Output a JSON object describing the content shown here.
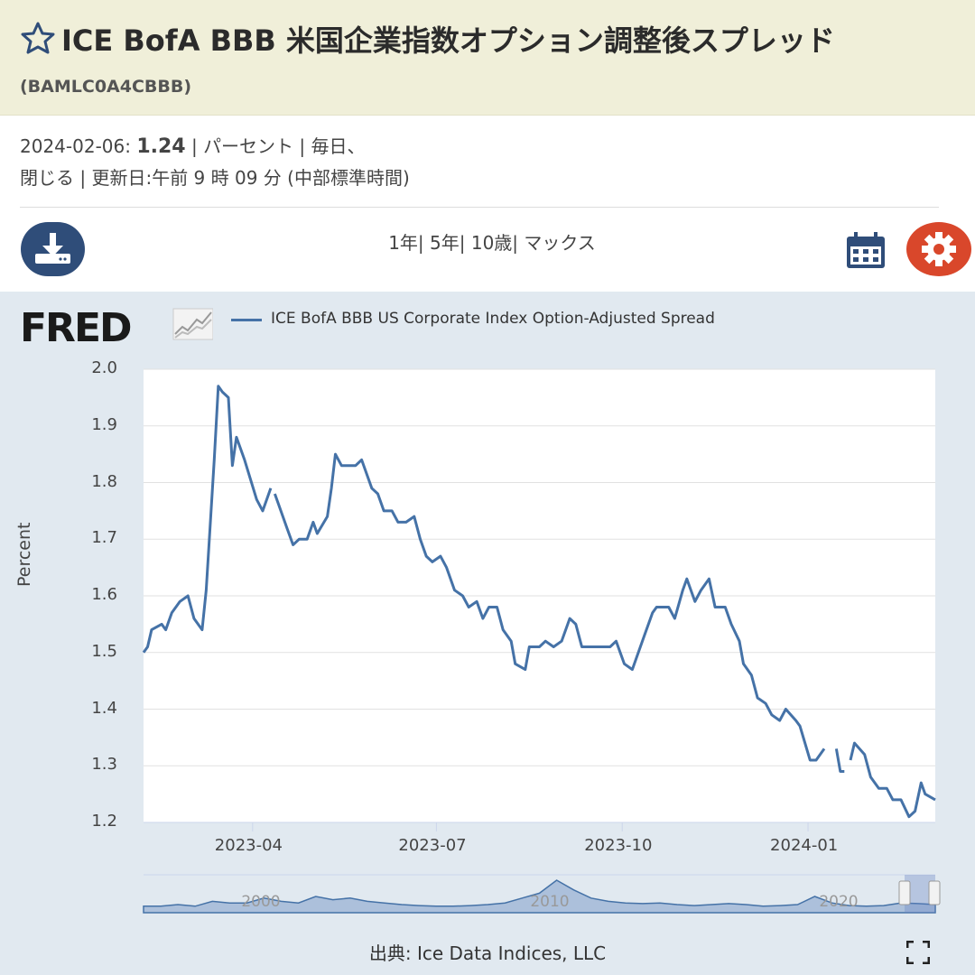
{
  "header": {
    "title": "ICE BofA BBB 米国企業指数オプション調整後スプレッド",
    "series_id": "(BAMLC0A4CBBB)"
  },
  "meta": {
    "date": "2024-02-06:",
    "value": "1.24",
    "line1_rest": " | パーセント | 毎日、",
    "line2": "閉じる | 更新日:午前 9 時 09 分 (中部標準時間)"
  },
  "ranges": [
    "1年|",
    " 5年|",
    " 10歳|",
    " マックス"
  ],
  "icons": {
    "download": "download-icon",
    "calendar": "calendar-icon",
    "settings": "gear-icon",
    "favorite": "star-icon",
    "fullscreen": "fullscreen-icon"
  },
  "colors": {
    "header_bg": "#f0efd9",
    "line": "#4572a7",
    "settings": "#d9472b",
    "download": "#2f4d79"
  },
  "chart_data": {
    "type": "line",
    "logo": "FRED",
    "legend": "ICE BofA BBB US Corporate Index Option-Adjusted Spread",
    "ylabel": "Percent",
    "xlabel": "",
    "ylim": [
      1.2,
      2.0
    ],
    "yticks": [
      "2.0",
      "1.9",
      "1.8",
      "1.7",
      "1.6",
      "1.5",
      "1.4",
      "1.3",
      "1.2"
    ],
    "xticks": [
      "2023-04",
      "2023-07",
      "2023-10",
      "2024-01"
    ],
    "navigator_labels": [
      "2000",
      "2010",
      "2020"
    ],
    "grid": true,
    "series": [
      {
        "name": "ICE BofA BBB US Corporate Index Option-Adjusted Spread",
        "points": [
          [
            "2023-02-06",
            1.5
          ],
          [
            "2023-02-08",
            1.51
          ],
          [
            "2023-02-10",
            1.54
          ],
          [
            "2023-02-15",
            1.55
          ],
          [
            "2023-02-17",
            1.54
          ],
          [
            "2023-02-20",
            1.57
          ],
          [
            "2023-02-24",
            1.59
          ],
          [
            "2023-02-28",
            1.6
          ],
          [
            "2023-03-03",
            1.56
          ],
          [
            "2023-03-07",
            1.54
          ],
          [
            "2023-03-09",
            1.61
          ],
          [
            "2023-03-13",
            1.84
          ],
          [
            "2023-03-15",
            1.97
          ],
          [
            "2023-03-17",
            1.96
          ],
          [
            "2023-03-20",
            1.95
          ],
          [
            "2023-03-22",
            1.83
          ],
          [
            "2023-03-24",
            1.88
          ],
          [
            "2023-03-28",
            1.84
          ],
          [
            "2023-04-03",
            1.77
          ],
          [
            "2023-04-06",
            1.75
          ],
          [
            "2023-04-10",
            1.79
          ],
          null,
          [
            "2023-04-12",
            1.78
          ],
          [
            "2023-04-14",
            1.76
          ],
          [
            "2023-04-18",
            1.72
          ],
          [
            "2023-04-21",
            1.69
          ],
          [
            "2023-04-24",
            1.7
          ],
          [
            "2023-04-28",
            1.7
          ],
          [
            "2023-05-01",
            1.73
          ],
          [
            "2023-05-03",
            1.71
          ],
          [
            "2023-05-08",
            1.74
          ],
          [
            "2023-05-10",
            1.79
          ],
          [
            "2023-05-12",
            1.85
          ],
          [
            "2023-05-15",
            1.83
          ],
          [
            "2023-05-22",
            1.83
          ],
          [
            "2023-05-25",
            1.84
          ],
          [
            "2023-05-30",
            1.79
          ],
          [
            "2023-06-02",
            1.78
          ],
          [
            "2023-06-05",
            1.75
          ],
          [
            "2023-06-09",
            1.75
          ],
          [
            "2023-06-12",
            1.73
          ],
          [
            "2023-06-16",
            1.73
          ],
          [
            "2023-06-20",
            1.74
          ],
          [
            "2023-06-23",
            1.7
          ],
          [
            "2023-06-26",
            1.67
          ],
          [
            "2023-06-29",
            1.66
          ],
          [
            "2023-07-03",
            1.67
          ],
          [
            "2023-07-06",
            1.65
          ],
          [
            "2023-07-10",
            1.61
          ],
          [
            "2023-07-14",
            1.6
          ],
          [
            "2023-07-17",
            1.58
          ],
          [
            "2023-07-21",
            1.59
          ],
          [
            "2023-07-24",
            1.56
          ],
          [
            "2023-07-27",
            1.58
          ],
          [
            "2023-07-31",
            1.58
          ],
          [
            "2023-08-03",
            1.54
          ],
          [
            "2023-08-07",
            1.52
          ],
          [
            "2023-08-09",
            1.48
          ],
          [
            "2023-08-14",
            1.47
          ],
          [
            "2023-08-16",
            1.51
          ],
          [
            "2023-08-21",
            1.51
          ],
          [
            "2023-08-24",
            1.52
          ],
          [
            "2023-08-28",
            1.51
          ],
          [
            "2023-09-01",
            1.52
          ],
          [
            "2023-09-05",
            1.56
          ],
          [
            "2023-09-08",
            1.55
          ],
          [
            "2023-09-11",
            1.51
          ],
          [
            "2023-09-20",
            1.51
          ],
          [
            "2023-09-25",
            1.51
          ],
          [
            "2023-09-28",
            1.52
          ],
          [
            "2023-10-02",
            1.48
          ],
          [
            "2023-10-06",
            1.47
          ],
          [
            "2023-10-09",
            1.5
          ],
          [
            "2023-10-12",
            1.53
          ],
          [
            "2023-10-16",
            1.57
          ],
          [
            "2023-10-18",
            1.58
          ],
          [
            "2023-10-24",
            1.58
          ],
          [
            "2023-10-27",
            1.56
          ],
          [
            "2023-10-31",
            1.61
          ],
          [
            "2023-11-02",
            1.63
          ],
          [
            "2023-11-06",
            1.59
          ],
          [
            "2023-11-09",
            1.61
          ],
          [
            "2023-11-13",
            1.63
          ],
          [
            "2023-11-16",
            1.58
          ],
          [
            "2023-11-21",
            1.58
          ],
          [
            "2023-11-24",
            1.55
          ],
          [
            "2023-11-28",
            1.52
          ],
          [
            "2023-11-30",
            1.48
          ],
          [
            "2023-12-04",
            1.46
          ],
          [
            "2023-12-07",
            1.42
          ],
          [
            "2023-12-11",
            1.41
          ],
          [
            "2023-12-14",
            1.39
          ],
          [
            "2023-12-18",
            1.38
          ],
          [
            "2023-12-21",
            1.4
          ],
          [
            "2023-12-26",
            1.38
          ],
          [
            "2023-12-28",
            1.37
          ],
          [
            "2024-01-02",
            1.31
          ],
          [
            "2024-01-05",
            1.31
          ],
          [
            "2024-01-09",
            1.33
          ],
          null,
          [
            "2024-01-15",
            1.33
          ],
          [
            "2024-01-17",
            1.29
          ],
          [
            "2024-01-19",
            1.29
          ],
          null,
          [
            "2024-01-22",
            1.31
          ],
          [
            "2024-01-24",
            1.34
          ],
          [
            "2024-01-29",
            1.32
          ],
          [
            "2024-02-01",
            1.28
          ],
          [
            "2024-02-05",
            1.26
          ],
          [
            "2024-02-09",
            1.26
          ],
          [
            "2024-02-12",
            1.24
          ],
          [
            "2024-02-16",
            1.24
          ],
          [
            "2024-02-20",
            1.21
          ],
          [
            "2024-02-23",
            1.22
          ],
          [
            "2024-02-26",
            1.27
          ],
          [
            "2024-02-28",
            1.25
          ],
          [
            "2024-03-04",
            1.24
          ]
        ]
      }
    ]
  },
  "source": "出典: Ice Data Indices, LLC"
}
